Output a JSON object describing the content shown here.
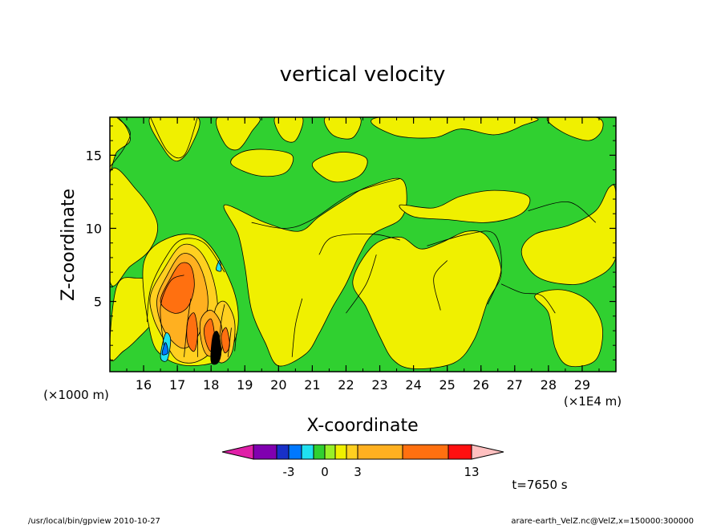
{
  "window": {
    "footer_left": "/usr/local/bin/gpview   2010-10-27",
    "footer_right": "arare-earth_VelZ.nc@VelZ,x=150000:300000",
    "time_label": "t=7650 s"
  },
  "chart_data": {
    "type": "heatmap",
    "title": "vertical velocity",
    "xlabel": "X-coordinate",
    "ylabel": "Z-coordinate",
    "x_unit_left": "(×1000 m)",
    "x_unit_right": "(×1E4 m)",
    "xlim": [
      15,
      30
    ],
    "ylim": [
      0.2,
      17.6
    ],
    "x_ticks": [
      16,
      17,
      18,
      19,
      20,
      21,
      22,
      23,
      24,
      25,
      26,
      27,
      28,
      29
    ],
    "x_tick_labels": [
      "16",
      "17",
      "18",
      "19",
      "20",
      "21",
      "22",
      "23",
      "24",
      "25",
      "26",
      "27",
      "28",
      "29"
    ],
    "y_ticks": [
      5,
      10,
      15
    ],
    "y_tick_labels": [
      "5",
      "10",
      "15"
    ],
    "grid": false,
    "colorbar": {
      "orientation": "horizontal",
      "colors": [
        "#e020a8",
        "#8000b0",
        "#1830c8",
        "#0078ff",
        "#20e0f0",
        "#30d030",
        "#98f028",
        "#f0f000",
        "#ffd020",
        "#ffb020",
        "#ff7010",
        "#ff1010",
        "#ff8080",
        "#ffc0c0"
      ],
      "tick_labels": [
        "-3",
        "0",
        "3",
        "13"
      ]
    },
    "background_field": "#30d030",
    "regions": [
      {
        "value": "positive-weak",
        "color": "#f0f000",
        "points": [
          [
            15,
            17.6
          ],
          [
            15.4,
            17.2
          ],
          [
            15.6,
            16
          ],
          [
            15.2,
            15.2
          ],
          [
            15,
            14
          ]
        ]
      },
      {
        "value": "positive-weak",
        "color": "#f0f000",
        "points": [
          [
            16.2,
            17.6
          ],
          [
            16.6,
            15.4
          ],
          [
            17,
            14.6
          ],
          [
            17.4,
            15.6
          ],
          [
            17.6,
            17.6
          ]
        ]
      },
      {
        "value": "positive-weak",
        "color": "#f0f000",
        "points": [
          [
            18.2,
            17.6
          ],
          [
            18.4,
            15.8
          ],
          [
            18.8,
            15.4
          ],
          [
            19.2,
            16.6
          ],
          [
            19.4,
            17.6
          ]
        ]
      },
      {
        "value": "positive-weak",
        "color": "#f0f000",
        "points": [
          [
            19.9,
            17.6
          ],
          [
            20.1,
            16.2
          ],
          [
            20.5,
            16
          ],
          [
            20.7,
            17.6
          ]
        ]
      },
      {
        "value": "positive-weak",
        "color": "#f0f000",
        "points": [
          [
            21.4,
            17.6
          ],
          [
            21.6,
            16.4
          ],
          [
            22.2,
            16.2
          ],
          [
            22.4,
            17.6
          ]
        ]
      },
      {
        "value": "positive-weak",
        "color": "#f0f000",
        "points": [
          [
            23,
            17.6
          ],
          [
            23.4,
            16.4
          ],
          [
            24.6,
            16.2
          ],
          [
            25.4,
            16.8
          ],
          [
            26.4,
            16.4
          ],
          [
            27.2,
            17
          ],
          [
            27.4,
            17.6
          ]
        ]
      },
      {
        "value": "positive-weak",
        "color": "#f0f000",
        "points": [
          [
            28,
            17.6
          ],
          [
            28.4,
            16.6
          ],
          [
            29.2,
            16
          ],
          [
            29.6,
            16.8
          ],
          [
            29.4,
            17.6
          ]
        ]
      },
      {
        "value": "positive-weak",
        "color": "#f0f000",
        "points": [
          [
            15,
            13.8
          ],
          [
            15.8,
            12.6
          ],
          [
            16.4,
            10.4
          ],
          [
            16.2,
            8.6
          ],
          [
            15.6,
            7.4
          ],
          [
            15,
            6.4
          ]
        ]
      },
      {
        "value": "positive-weak",
        "color": "#f0f000",
        "points": [
          [
            15.2,
            6
          ],
          [
            15.8,
            6.6
          ],
          [
            16.6,
            6
          ],
          [
            16.4,
            4
          ],
          [
            15.8,
            2.4
          ],
          [
            15.4,
            1.6
          ],
          [
            15,
            1.2
          ]
        ]
      },
      {
        "value": "positive-weak",
        "color": "#f0f000",
        "points": [
          [
            16,
            7.6
          ],
          [
            16.8,
            9.4
          ],
          [
            17.8,
            9.2
          ],
          [
            18.6,
            6.2
          ],
          [
            18.8,
            3.4
          ],
          [
            18.4,
            1.2
          ],
          [
            17.4,
            0.6
          ],
          [
            16.6,
            1.2
          ],
          [
            16.2,
            2.8
          ]
        ]
      },
      {
        "value": "positive-weak",
        "color": "#f0f000",
        "points": [
          [
            18.4,
            11.6
          ],
          [
            19.6,
            10.4
          ],
          [
            20.6,
            9.8
          ],
          [
            21.2,
            10.8
          ],
          [
            22,
            12
          ],
          [
            22.6,
            12.8
          ],
          [
            23.6,
            13.4
          ],
          [
            23.8,
            12
          ],
          [
            23.6,
            10.6
          ],
          [
            22.8,
            9.6
          ],
          [
            22.4,
            8.2
          ],
          [
            22,
            6.2
          ],
          [
            21.6,
            4.6
          ],
          [
            21.2,
            2.8
          ],
          [
            20.8,
            1.4
          ],
          [
            20,
            0.6
          ],
          [
            19.6,
            2.2
          ],
          [
            19.2,
            4.4
          ],
          [
            19,
            7.4
          ],
          [
            18.8,
            9.6
          ]
        ]
      },
      {
        "value": "positive-weak",
        "color": "#f0f000",
        "points": [
          [
            22.8,
            8.8
          ],
          [
            23.6,
            9.4
          ],
          [
            24.2,
            8.6
          ],
          [
            24.8,
            9
          ],
          [
            25.6,
            9.8
          ],
          [
            26.2,
            9.4
          ],
          [
            26.6,
            7
          ],
          [
            26.2,
            5
          ],
          [
            25.8,
            2.4
          ],
          [
            25.2,
            0.8
          ],
          [
            24,
            0.4
          ],
          [
            23.4,
            1
          ],
          [
            23,
            2.6
          ],
          [
            22.6,
            4.6
          ],
          [
            22.2,
            6.4
          ]
        ]
      },
      {
        "value": "positive-weak",
        "color": "#f0f000",
        "points": [
          [
            23.6,
            11.6
          ],
          [
            24.6,
            11.4
          ],
          [
            25.4,
            12.2
          ],
          [
            26.4,
            12.6
          ],
          [
            27.4,
            12.2
          ],
          [
            27.2,
            11
          ],
          [
            26.2,
            10.4
          ],
          [
            25,
            10.6
          ],
          [
            24,
            10.8
          ]
        ]
      },
      {
        "value": "positive-weak",
        "color": "#f0f000",
        "points": [
          [
            27.2,
            8.4
          ],
          [
            27.6,
            9.6
          ],
          [
            28.6,
            10.2
          ],
          [
            29.4,
            11.2
          ],
          [
            29.8,
            12.8
          ],
          [
            30,
            12.4
          ],
          [
            30,
            8
          ],
          [
            29.2,
            6.4
          ],
          [
            28.4,
            6.2
          ],
          [
            27.6,
            6.8
          ]
        ]
      },
      {
        "value": "positive-weak",
        "color": "#f0f000",
        "points": [
          [
            27.6,
            5.4
          ],
          [
            28,
            4.2
          ],
          [
            28.2,
            1.8
          ],
          [
            28.6,
            0.6
          ],
          [
            29.4,
            1
          ],
          [
            29.6,
            3.2
          ],
          [
            29.2,
            5
          ],
          [
            28.4,
            5.8
          ]
        ]
      },
      {
        "value": "positive-weak",
        "color": "#f0f000",
        "points": [
          [
            18.6,
            14.4
          ],
          [
            19.4,
            13.6
          ],
          [
            20.2,
            13.8
          ],
          [
            20.4,
            15
          ],
          [
            19.6,
            15.4
          ],
          [
            18.9,
            15.2
          ]
        ]
      },
      {
        "value": "positive-weak",
        "color": "#f0f000",
        "points": [
          [
            21,
            14.4
          ],
          [
            21.6,
            13.2
          ],
          [
            22.4,
            13.6
          ],
          [
            22.6,
            14.8
          ],
          [
            21.8,
            15.2
          ]
        ]
      },
      {
        "value": "positive-moderate",
        "color": "#ffd020",
        "points": [
          [
            16.2,
            5.4
          ],
          [
            16.6,
            7.2
          ],
          [
            17.1,
            8.8
          ],
          [
            17.6,
            8.6
          ],
          [
            18,
            7
          ],
          [
            18.2,
            4.6
          ],
          [
            18.1,
            2
          ],
          [
            17.6,
            0.9
          ],
          [
            17,
            1
          ],
          [
            16.6,
            2.4
          ],
          [
            16.3,
            3.8
          ]
        ]
      },
      {
        "value": "positive-moderate",
        "color": "#ffd020",
        "points": [
          [
            18.1,
            4.2
          ],
          [
            18.4,
            5
          ],
          [
            18.7,
            3.6
          ],
          [
            18.6,
            1.4
          ],
          [
            18.2,
            1
          ]
        ]
      },
      {
        "value": "positive-strong",
        "color": "#ffb020",
        "points": [
          [
            16.4,
            5.2
          ],
          [
            16.7,
            6.8
          ],
          [
            17.1,
            8.2
          ],
          [
            17.5,
            8
          ],
          [
            17.8,
            6.6
          ],
          [
            17.9,
            4.6
          ],
          [
            17.6,
            2.6
          ],
          [
            17.2,
            1.8
          ],
          [
            16.8,
            2.4
          ],
          [
            16.5,
            3.6
          ]
        ]
      },
      {
        "value": "positive-strong",
        "color": "#ffb020",
        "points": [
          [
            17.7,
            3.8
          ],
          [
            18,
            4.4
          ],
          [
            18.3,
            3.4
          ],
          [
            18.3,
            1.6
          ],
          [
            17.9,
            1.3
          ],
          [
            17.7,
            2.4
          ]
        ]
      },
      {
        "value": "positive-max",
        "color": "#ff7010",
        "points": [
          [
            16.5,
            5
          ],
          [
            16.8,
            6.6
          ],
          [
            17.1,
            7.6
          ],
          [
            17.4,
            7.4
          ],
          [
            17.5,
            6
          ],
          [
            17.3,
            4.6
          ],
          [
            16.9,
            4.2
          ]
        ]
      },
      {
        "value": "positive-max",
        "color": "#ff7010",
        "points": [
          [
            17.3,
            3.6
          ],
          [
            17.5,
            4.2
          ],
          [
            17.6,
            2.8
          ],
          [
            17.5,
            1.6
          ],
          [
            17.3,
            2.2
          ]
        ]
      },
      {
        "value": "positive-max",
        "color": "#ff7010",
        "points": [
          [
            17.8,
            3.2
          ],
          [
            18,
            3.8
          ],
          [
            18.1,
            2.6
          ],
          [
            18,
            1.6
          ],
          [
            17.85,
            2.2
          ]
        ]
      },
      {
        "value": "positive-max",
        "color": "#ff7010",
        "points": [
          [
            18.3,
            2.6
          ],
          [
            18.45,
            3.2
          ],
          [
            18.55,
            2
          ],
          [
            18.4,
            1.5
          ]
        ]
      },
      {
        "value": "negative-weak",
        "color": "#20e0f0",
        "points": [
          [
            16.5,
            1.2
          ],
          [
            16.65,
            2.8
          ],
          [
            16.8,
            2.4
          ],
          [
            16.7,
            1
          ]
        ]
      },
      {
        "value": "negative-weak",
        "color": "#20e0f0",
        "points": [
          [
            18.15,
            7.2
          ],
          [
            18.25,
            7.8
          ],
          [
            18.3,
            7.1
          ]
        ]
      },
      {
        "value": "negative-moderate",
        "color": "#0078ff",
        "points": [
          [
            16.55,
            1.4
          ],
          [
            16.65,
            2.2
          ],
          [
            16.72,
            1.5
          ]
        ]
      },
      {
        "value": "negative-strong",
        "color": "#000000",
        "points": [
          [
            18,
            0.9
          ],
          [
            18.05,
            2.6
          ],
          [
            18.2,
            2.9
          ],
          [
            18.3,
            1.6
          ],
          [
            18.2,
            0.8
          ]
        ]
      }
    ],
    "contours": [
      [
        [
          15.2,
          17.6
        ],
        [
          15.6,
          16.6
        ],
        [
          15.4,
          15.4
        ],
        [
          15,
          14.2
        ]
      ],
      [
        [
          16.2,
          17.6
        ],
        [
          16.7,
          15.3
        ],
        [
          17.2,
          15
        ],
        [
          17.6,
          17.6
        ]
      ],
      [
        [
          19.2,
          10.4
        ],
        [
          20.2,
          10
        ],
        [
          21,
          10.6
        ],
        [
          22.2,
          12.4
        ],
        [
          23.6,
          13.4
        ]
      ],
      [
        [
          21.2,
          8.2
        ],
        [
          21.6,
          9.4
        ],
        [
          22.8,
          9.6
        ],
        [
          23.6,
          9.2
        ]
      ],
      [
        [
          24.4,
          8.8
        ],
        [
          25.6,
          9.6
        ],
        [
          26.4,
          9.6
        ],
        [
          26.6,
          7.2
        ],
        [
          26.2,
          4.8
        ]
      ],
      [
        [
          26.6,
          6.2
        ],
        [
          27.2,
          5.6
        ],
        [
          27.8,
          5.4
        ],
        [
          28.2,
          4.2
        ]
      ],
      [
        [
          27.4,
          11.2
        ],
        [
          28.6,
          11.8
        ],
        [
          29.4,
          10.4
        ]
      ],
      [
        [
          16.1,
          3.6
        ],
        [
          16.2,
          5.8
        ],
        [
          16.6,
          7.8
        ],
        [
          17.1,
          9.2
        ],
        [
          17.8,
          9
        ],
        [
          18.4,
          7
        ]
      ],
      [
        [
          16.6,
          2
        ],
        [
          16.5,
          4.6
        ],
        [
          16.8,
          6.4
        ],
        [
          17.2,
          6.8
        ]
      ],
      [
        [
          17.2,
          1.2
        ],
        [
          17.3,
          3.6
        ],
        [
          17.4,
          5.2
        ]
      ],
      [
        [
          17.6,
          1.2
        ],
        [
          17.6,
          3.2
        ]
      ],
      [
        [
          18.2,
          1.2
        ],
        [
          18.3,
          3.6
        ],
        [
          18.4,
          4.8
        ]
      ],
      [
        [
          18.5,
          1.2
        ],
        [
          18.6,
          3.2
        ]
      ],
      [
        [
          18.7,
          1.6
        ],
        [
          18.75,
          2.8
        ]
      ],
      [
        [
          20.4,
          1.2
        ],
        [
          20.5,
          3.4
        ],
        [
          20.7,
          5.2
        ]
      ],
      [
        [
          22,
          4.2
        ],
        [
          22.6,
          6.2
        ],
        [
          22.9,
          8.2
        ]
      ],
      [
        [
          24.8,
          4.4
        ],
        [
          24.6,
          6.6
        ],
        [
          25,
          7.8
        ]
      ]
    ]
  }
}
